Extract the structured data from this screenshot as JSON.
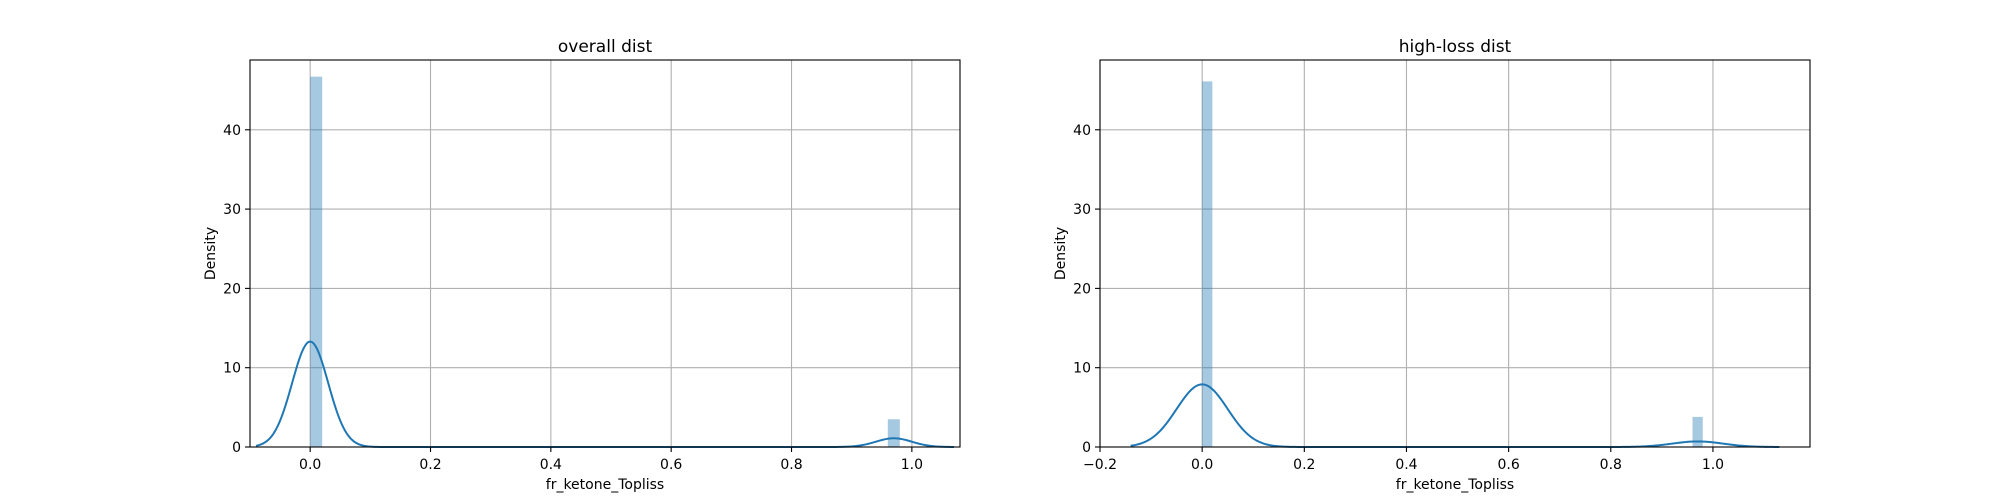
{
  "chart_data": [
    {
      "type": "histogram+kde",
      "title": "overall dist",
      "xlabel": "fr_ketone_Topliss",
      "ylabel": "Density",
      "xlim": [
        -0.1,
        1.08
      ],
      "ylim": [
        0,
        48.8
      ],
      "xticks": [
        0.0,
        0.2,
        0.4,
        0.6,
        0.8,
        1.0
      ],
      "xtick_labels": [
        "0.0",
        "0.2",
        "0.4",
        "0.6",
        "0.8",
        "1.0"
      ],
      "yticks": [
        0,
        10,
        20,
        30,
        40
      ],
      "ytick_labels": [
        "0",
        "10",
        "20",
        "30",
        "40"
      ],
      "grid": true,
      "bars": [
        {
          "x0": 0.0,
          "x1": 0.02,
          "density": 46.7
        },
        {
          "x0": 0.96,
          "x1": 0.98,
          "density": 3.5
        }
      ],
      "kde": {
        "components": [
          {
            "mean": 0.0,
            "sd": 0.03,
            "peak": 13.3
          },
          {
            "mean": 0.97,
            "sd": 0.03,
            "peak": 1.1
          }
        ],
        "range": [
          -0.09,
          1.07
        ]
      }
    },
    {
      "type": "histogram+kde",
      "title": "high-loss dist",
      "xlabel": "fr_ketone_Topliss",
      "ylabel": "Density",
      "xlim": [
        -0.2,
        1.19
      ],
      "ylim": [
        0,
        48.8
      ],
      "xticks": [
        -0.2,
        0.0,
        0.2,
        0.4,
        0.6,
        0.8,
        1.0
      ],
      "xtick_labels": [
        "−0.2",
        "0.0",
        "0.2",
        "0.4",
        "0.6",
        "0.8",
        "1.0"
      ],
      "yticks": [
        0,
        10,
        20,
        30,
        40
      ],
      "ytick_labels": [
        "0",
        "10",
        "20",
        "30",
        "40"
      ],
      "grid": true,
      "bars": [
        {
          "x0": 0.0,
          "x1": 0.02,
          "density": 46.1
        },
        {
          "x0": 0.96,
          "x1": 0.98,
          "density": 3.8
        }
      ],
      "kde": {
        "components": [
          {
            "mean": 0.0,
            "sd": 0.05,
            "peak": 7.9
          },
          {
            "mean": 0.97,
            "sd": 0.05,
            "peak": 0.7
          }
        ],
        "range": [
          -0.14,
          1.13
        ]
      }
    }
  ]
}
